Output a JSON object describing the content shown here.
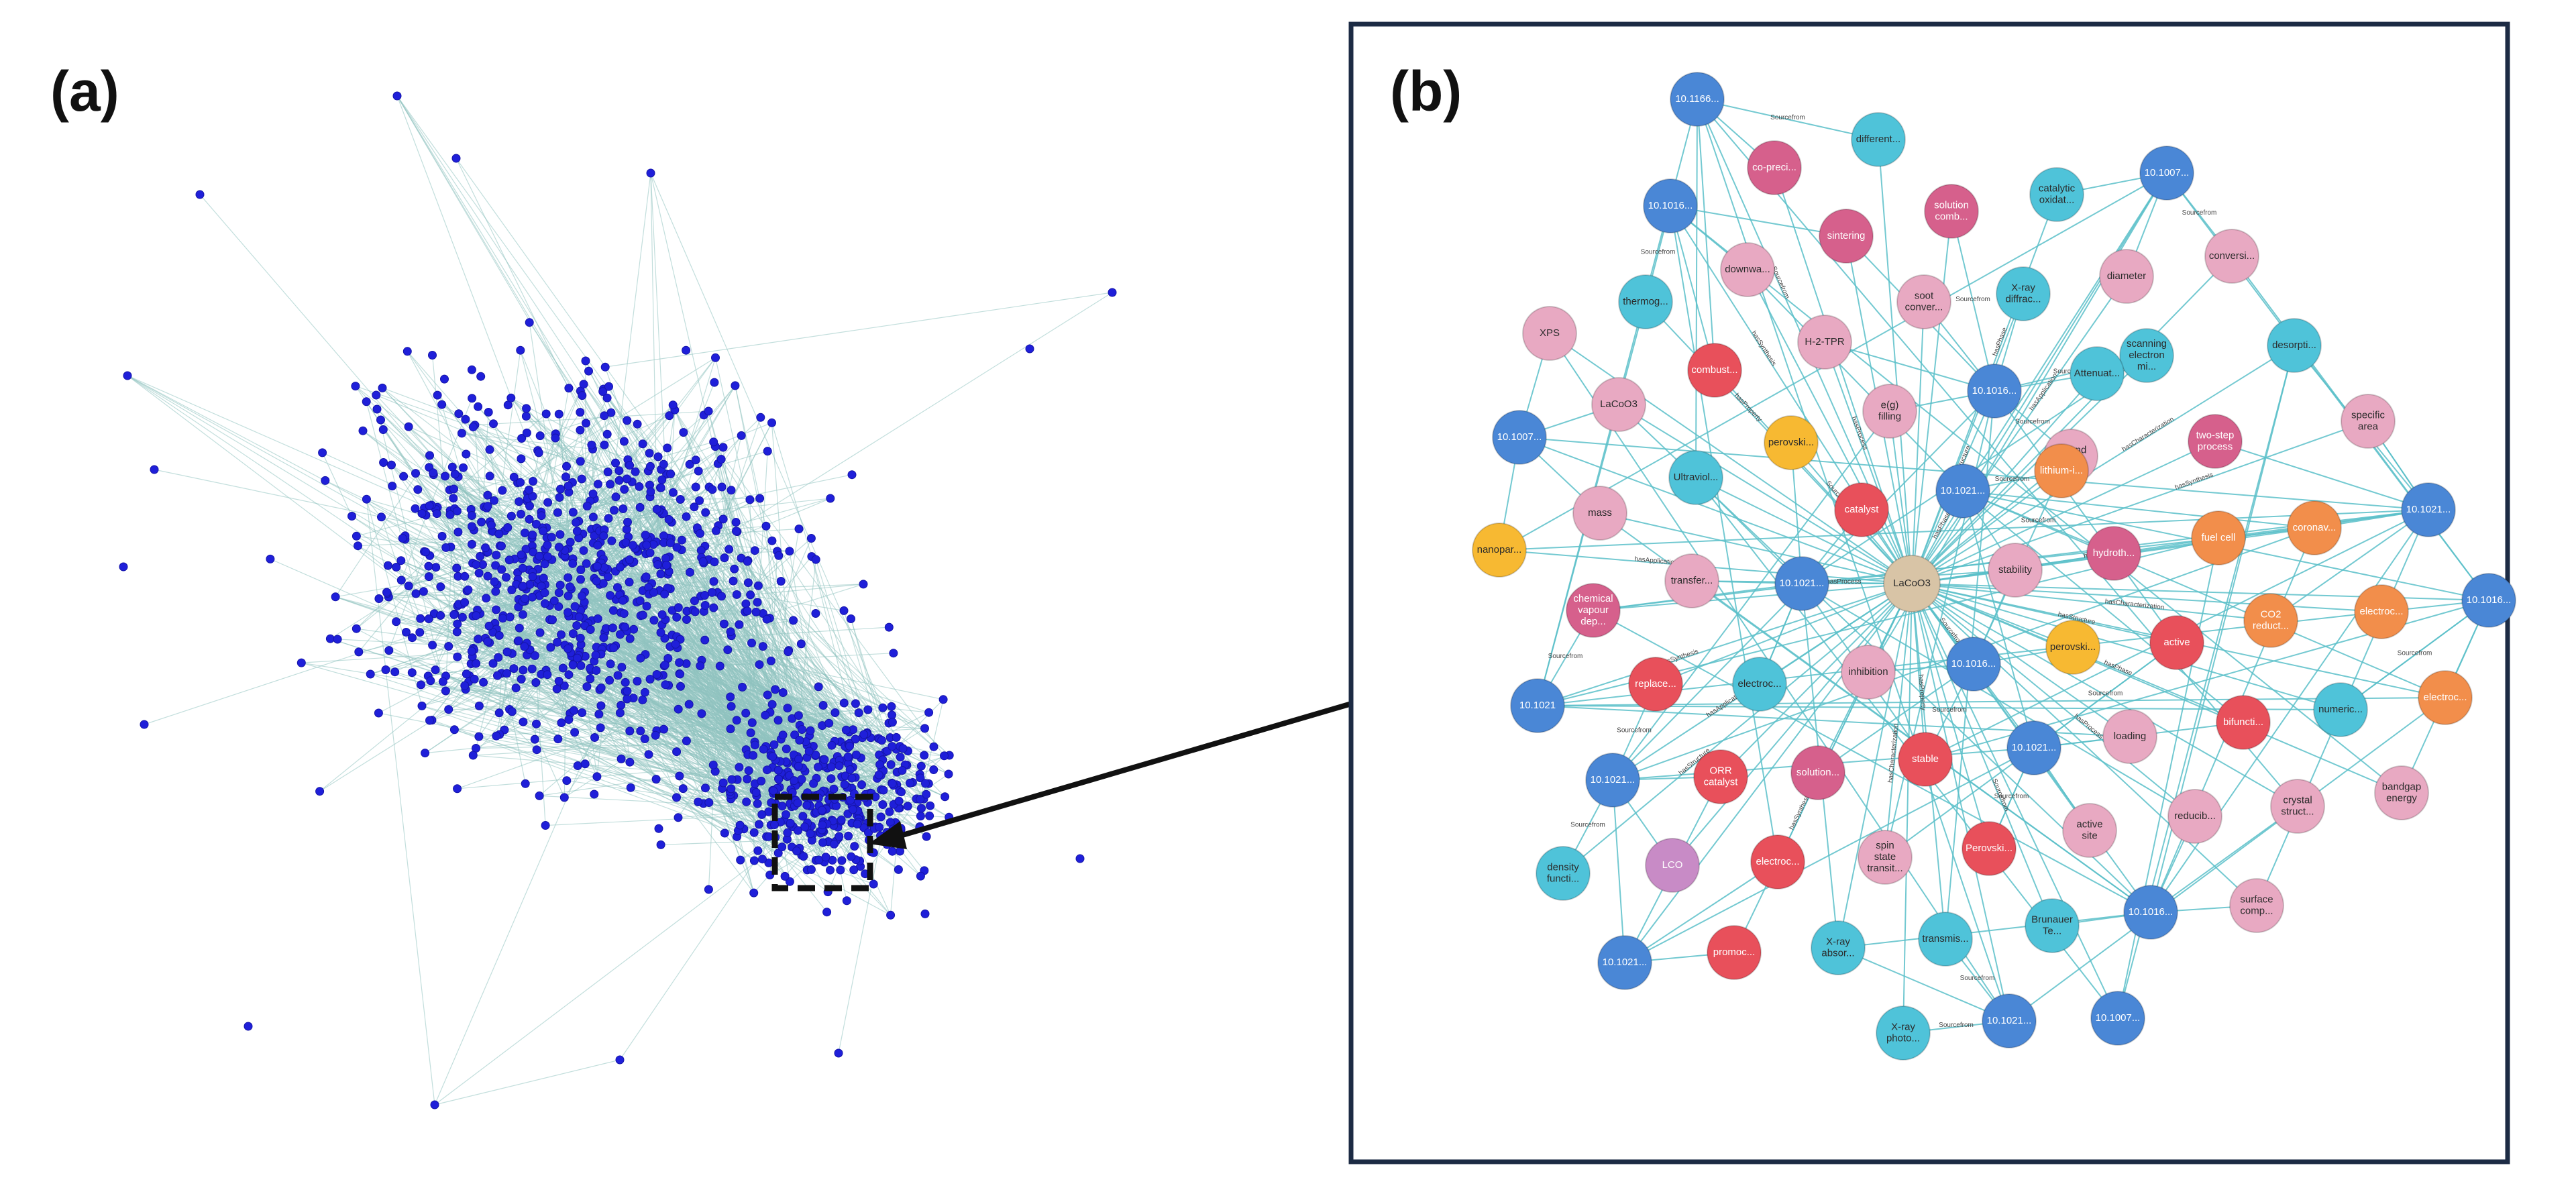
{
  "panels": {
    "a": {
      "label": "(a)"
    },
    "b": {
      "label": "(b)"
    }
  },
  "colors": {
    "background": "#ffffff",
    "dot": "#1f1fd9",
    "dot_edge": "#1515a8",
    "overview_edge": "#8fc3bf",
    "detail_edge": "#5bc0c9",
    "frame": "#1c2b44",
    "selection_box": "#111111",
    "arrow": "#111111"
  },
  "legend_colors": {
    "doi": "#4a87d6",
    "property": "#e8a9c2",
    "method": "#d6608c",
    "characterization": "#4fc3d9",
    "material": "#e8505b",
    "application": "#f28e4b",
    "perovskite": "#f7b932",
    "center": "#d8c4a6",
    "other": "#c88bc6"
  },
  "edge_labels": [
    "Sourcefrom",
    "hasProperty",
    "hasCharacterization",
    "hasSynthesis",
    "hasApplication",
    "hasStructure",
    "hasPhase",
    "hasProcess"
  ],
  "network_b": {
    "center": {
      "label": "LaCoO3",
      "type": "center"
    },
    "nodes": [
      {
        "id": "n1",
        "label": "10.1166...",
        "type": "doi"
      },
      {
        "id": "n2",
        "label": "different...",
        "type": "characterization"
      },
      {
        "id": "n3",
        "label": "co-preci...",
        "type": "method"
      },
      {
        "id": "n4",
        "label": "10.1016...",
        "type": "doi"
      },
      {
        "id": "n5",
        "label": "sintering",
        "type": "method"
      },
      {
        "id": "n6",
        "label": "solution comb...",
        "type": "method"
      },
      {
        "id": "n7",
        "label": "catalytic oxidat...",
        "type": "characterization"
      },
      {
        "id": "n8",
        "label": "10.1007...",
        "type": "doi"
      },
      {
        "id": "n9",
        "label": "downwa...",
        "type": "property"
      },
      {
        "id": "n10",
        "label": "thermog...",
        "type": "characterization"
      },
      {
        "id": "n11",
        "label": "soot conver...",
        "type": "property"
      },
      {
        "id": "n12",
        "label": "X-ray diffrac...",
        "type": "characterization"
      },
      {
        "id": "n13",
        "label": "diameter",
        "type": "property"
      },
      {
        "id": "n14",
        "label": "conversi...",
        "type": "property"
      },
      {
        "id": "n15",
        "label": "XPS",
        "type": "property"
      },
      {
        "id": "n16",
        "label": "H-2-TPR",
        "type": "property"
      },
      {
        "id": "n17",
        "label": "combust...",
        "type": "material"
      },
      {
        "id": "n18",
        "label": "scanning electron mi...",
        "type": "characterization"
      },
      {
        "id": "n19",
        "label": "desorpti...",
        "type": "characterization"
      },
      {
        "id": "n20",
        "label": "LaCoO3",
        "type": "property"
      },
      {
        "id": "n21",
        "label": "e(g) filling",
        "type": "property"
      },
      {
        "id": "n22",
        "label": "10.1016...",
        "type": "doi"
      },
      {
        "id": "n23",
        "label": "Attenuat...",
        "type": "characterization"
      },
      {
        "id": "n24",
        "label": "10.1007...",
        "type": "doi"
      },
      {
        "id": "n25",
        "label": "perovski...",
        "type": "perovskite"
      },
      {
        "id": "n26",
        "label": "d-band centre",
        "type": "property"
      },
      {
        "id": "n27",
        "label": "two-step process",
        "type": "method"
      },
      {
        "id": "n28",
        "label": "specific area",
        "type": "property"
      },
      {
        "id": "n29",
        "label": "Ultraviol...",
        "type": "characterization"
      },
      {
        "id": "n30",
        "label": "lithium-i...",
        "type": "application"
      },
      {
        "id": "n31",
        "label": "10.1021...",
        "type": "doi"
      },
      {
        "id": "n32",
        "label": "mass",
        "type": "property"
      },
      {
        "id": "n33",
        "label": "catalyst",
        "type": "material"
      },
      {
        "id": "n34",
        "label": "fuel cell",
        "type": "application"
      },
      {
        "id": "n35",
        "label": "coronav...",
        "type": "application"
      },
      {
        "id": "n36",
        "label": "10.1021...",
        "type": "doi"
      },
      {
        "id": "n37",
        "label": "nanopar...",
        "type": "perovskite"
      },
      {
        "id": "n38",
        "label": "hydroth...",
        "type": "method"
      },
      {
        "id": "n39",
        "label": "transfer...",
        "type": "property"
      },
      {
        "id": "n40",
        "label": "10.1021...",
        "type": "doi"
      },
      {
        "id": "n41",
        "label": "stability",
        "type": "property"
      },
      {
        "id": "n42",
        "label": "chemical vapour dep...",
        "type": "method"
      },
      {
        "id": "n43",
        "label": "CO2 reduct...",
        "type": "application"
      },
      {
        "id": "n44",
        "label": "10.1016...",
        "type": "doi"
      },
      {
        "id": "n45",
        "label": "electroc...",
        "type": "application"
      },
      {
        "id": "n46",
        "label": "active",
        "type": "material"
      },
      {
        "id": "n47",
        "label": "perovski...",
        "type": "perovskite"
      },
      {
        "id": "n48",
        "label": "inhibition",
        "type": "property"
      },
      {
        "id": "n49",
        "label": "10.1016...",
        "type": "doi"
      },
      {
        "id": "n50",
        "label": "replace...",
        "type": "material"
      },
      {
        "id": "n51",
        "label": "electroc...",
        "type": "characterization"
      },
      {
        "id": "n52",
        "label": "10.1021",
        "type": "doi"
      },
      {
        "id": "n53",
        "label": "electroc...",
        "type": "application"
      },
      {
        "id": "n54",
        "label": "numeric...",
        "type": "characterization"
      },
      {
        "id": "n55",
        "label": "bifuncti...",
        "type": "material"
      },
      {
        "id": "n56",
        "label": "loading",
        "type": "property"
      },
      {
        "id": "n57",
        "label": "10.1021...",
        "type": "doi"
      },
      {
        "id": "n58",
        "label": "stable",
        "type": "material"
      },
      {
        "id": "n59",
        "label": "solution...",
        "type": "method"
      },
      {
        "id": "n60",
        "label": "ORR catalyst",
        "type": "material"
      },
      {
        "id": "n61",
        "label": "10.1021...",
        "type": "doi"
      },
      {
        "id": "n62",
        "label": "bandgap energy",
        "type": "property"
      },
      {
        "id": "n63",
        "label": "crystal struct...",
        "type": "property"
      },
      {
        "id": "n64",
        "label": "reducib...",
        "type": "property"
      },
      {
        "id": "n65",
        "label": "active site",
        "type": "property"
      },
      {
        "id": "n66",
        "label": "Perovski...",
        "type": "material"
      },
      {
        "id": "n67",
        "label": "spin state transit...",
        "type": "property"
      },
      {
        "id": "n68",
        "label": "LCO",
        "type": "other"
      },
      {
        "id": "n69",
        "label": "electroc...",
        "type": "material"
      },
      {
        "id": "n70",
        "label": "density functi...",
        "type": "characterization"
      },
      {
        "id": "n71",
        "label": "surface comp...",
        "type": "property"
      },
      {
        "id": "n72",
        "label": "10.1016...",
        "type": "doi"
      },
      {
        "id": "n73",
        "label": "Brunauer Te...",
        "type": "characterization"
      },
      {
        "id": "n74",
        "label": "transmis...",
        "type": "characterization"
      },
      {
        "id": "n75",
        "label": "X-ray absor...",
        "type": "characterization"
      },
      {
        "id": "n76",
        "label": "promoc...",
        "type": "material"
      },
      {
        "id": "n77",
        "label": "10.1021...",
        "type": "doi"
      },
      {
        "id": "n78",
        "label": "X-ray photo...",
        "type": "characterization"
      },
      {
        "id": "n79",
        "label": "10.1021...",
        "type": "doi"
      },
      {
        "id": "n80",
        "label": "10.1007...",
        "type": "doi"
      }
    ]
  }
}
